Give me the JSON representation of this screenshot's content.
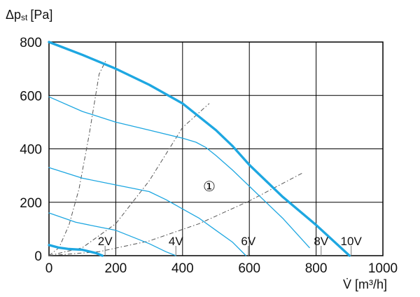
{
  "chart_data": {
    "type": "line",
    "title": "",
    "ylabel_main": "Δp",
    "ylabel_sub": "st",
    "ylabel_unit": "[Pa]",
    "xlabel_main": "V̇",
    "xlabel_unit": "[m³/h]",
    "xlim": [
      0,
      1000
    ],
    "ylim": [
      0,
      800
    ],
    "xticks": [
      "0",
      "200",
      "400",
      "600",
      "800",
      "1000"
    ],
    "yticks": [
      "0",
      "200",
      "400",
      "600",
      "800"
    ],
    "grid": true,
    "curve_label": "①",
    "series": [
      {
        "role": "max",
        "color": "#1ea7e1",
        "x": [
          0,
          100,
          200,
          300,
          400,
          500,
          550,
          600,
          700,
          800,
          900
        ],
        "y": [
          800,
          752,
          700,
          640,
          570,
          470,
          410,
          340,
          220,
          115,
          0
        ]
      },
      {
        "role": "voltage",
        "color": "#1ea7e1",
        "x": [
          0,
          100,
          200,
          300,
          400,
          440,
          470,
          500,
          550,
          600,
          700,
          780
        ],
        "y": [
          595,
          540,
          500,
          470,
          440,
          425,
          405,
          375,
          320,
          260,
          140,
          30
        ]
      },
      {
        "role": "voltage",
        "color": "#1ea7e1",
        "x": [
          0,
          100,
          200,
          300,
          350,
          400,
          450,
          500,
          550,
          590
        ],
        "y": [
          330,
          290,
          265,
          240,
          210,
          175,
          140,
          95,
          50,
          0
        ]
      },
      {
        "role": "voltage",
        "color": "#1ea7e1",
        "x": [
          0,
          80,
          140,
          200,
          260,
          300,
          350,
          380
        ],
        "y": [
          160,
          125,
          110,
          95,
          65,
          45,
          15,
          0
        ]
      },
      {
        "role": "low",
        "color": "#1ea7e1",
        "x": [
          0,
          30,
          60,
          100,
          140,
          160
        ],
        "y": [
          40,
          30,
          25,
          22,
          10,
          0
        ]
      }
    ],
    "system_curves": [
      {
        "color": "#555555",
        "x": [
          0,
          30,
          60,
          90,
          120,
          150,
          170
        ],
        "y": [
          0,
          30,
          115,
          250,
          450,
          680,
          730
        ]
      },
      {
        "color": "#555555",
        "x": [
          0,
          100,
          200,
          300,
          400,
          480
        ],
        "y": [
          0,
          30,
          120,
          280,
          480,
          570
        ]
      },
      {
        "color": "#555555",
        "x": [
          0,
          150,
          300,
          450,
          600,
          760
        ],
        "y": [
          0,
          15,
          55,
          120,
          205,
          310
        ]
      }
    ],
    "voltage_labels": [
      {
        "text": "2V",
        "x": 168
      },
      {
        "text": "4V",
        "x": 380
      },
      {
        "text": "6V",
        "x": 597
      },
      {
        "text": "8V",
        "x": 815
      },
      {
        "text": "10V",
        "x": 905
      }
    ],
    "curve_label_at": {
      "x": 480,
      "y": 260
    }
  }
}
